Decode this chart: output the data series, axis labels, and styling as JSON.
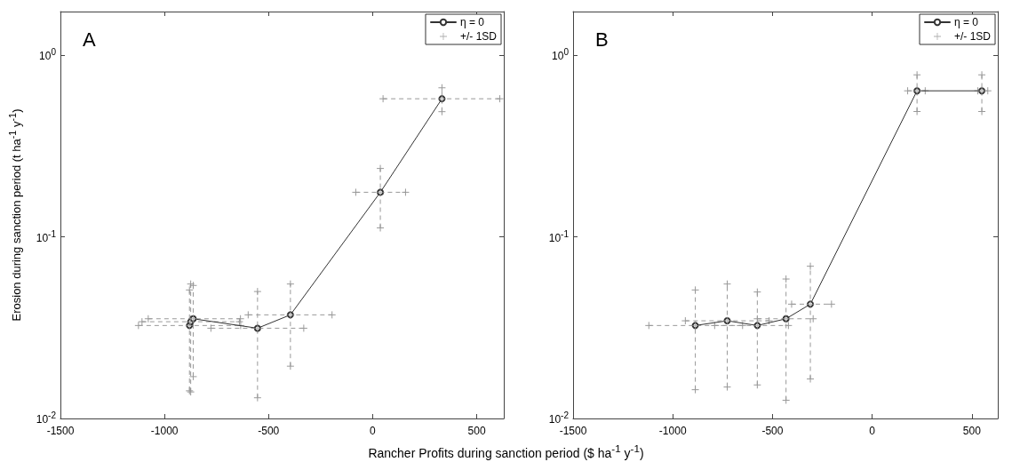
{
  "chart_data": [
    {
      "type": "line",
      "title": "A",
      "xlabel": "Rancher Profits during sanction period ($ ha$^{-1}$ y$^{-1}$)",
      "ylabel": "Erosion during sanction period (t ha$^{-1}$ y$^{-1}$)",
      "log": "y",
      "legend": "top right",
      "xlim": [
        -1500,
        630
      ],
      "xticks": [
        -1500,
        -1000,
        -500,
        0,
        500
      ],
      "ylim": [
        0.01,
        1.74
      ],
      "yticks": [
        {
          "value": 0.01,
          "label": "10$^{-2}$"
        },
        {
          "value": 0.1,
          "label": "10$^{-1}$"
        },
        {
          "value": 1,
          "label": "10$^{0}$"
        }
      ],
      "series": [
        {
          "name": "η = 0",
          "color": "#333333",
          "marker": "circle",
          "line_style": "solid",
          "x": [
            -880,
            -874,
            -862,
            -553,
            -395,
            37,
            333
          ],
          "values": [
            0.0325,
            0.0341,
            0.0354,
            0.0314,
            0.0372,
            0.176,
            0.576
          ]
        },
        {
          "name": "+/- 1SD",
          "type": "scatter",
          "color": "#999999",
          "marker": "cross",
          "line_style": "dashed",
          "x": [
            -880,
            -874,
            -862,
            -553,
            -395,
            37,
            333
          ],
          "values": [
            0.0325,
            0.0341,
            0.0354,
            0.0314,
            0.0372,
            0.176,
            0.576
          ],
          "errors": [
            [
              0.0142,
              0.051
            ],
            [
              0.014,
              0.055
            ],
            [
              0.017,
              0.054
            ],
            [
              0.013,
              0.05
            ],
            [
              0.0194,
              0.055
            ],
            [
              0.112,
              0.238
            ],
            [
              0.489,
              0.662
            ]
          ],
          "xerrors": [
            [
              -1125,
              -634
            ],
            [
              -1108,
              -640
            ],
            [
              -1078,
              -635
            ],
            [
              -777,
              -331
            ],
            [
              -598,
              -195
            ],
            [
              -81,
              158
            ],
            [
              50,
              611
            ]
          ]
        }
      ]
    },
    {
      "type": "line",
      "title": "B",
      "log": "y",
      "legend": "top right",
      "xlim": [
        -1500,
        630
      ],
      "xticks": [
        -1500,
        -1000,
        -500,
        0,
        500
      ],
      "ylim": [
        0.01,
        1.74
      ],
      "yticks": [
        {
          "value": 0.01,
          "label": "10$^{-2}$"
        },
        {
          "value": 0.1,
          "label": "10$^{-1}$"
        },
        {
          "value": 1,
          "label": "10$^{0}$"
        }
      ],
      "series": [
        {
          "name": "η = 0",
          "color": "#333333",
          "marker": "circle",
          "line_style": "solid",
          "x": [
            -887,
            -727,
            -576,
            -432,
            -310,
            225,
            550
          ],
          "values": [
            0.0325,
            0.0345,
            0.0325,
            0.0354,
            0.0426,
            0.637,
            0.637
          ]
        },
        {
          "name": "+/- 1SD",
          "type": "scatter",
          "color": "#999999",
          "marker": "cross",
          "line_style": "dashed",
          "x": [
            -887,
            -727,
            -576,
            -432,
            -310,
            225,
            550
          ],
          "values": [
            0.0325,
            0.0345,
            0.0325,
            0.0354,
            0.0426,
            0.637,
            0.637
          ],
          "errors": [
            [
              0.0144,
              0.051
            ],
            [
              0.0149,
              0.055
            ],
            [
              0.0153,
              0.0497
            ],
            [
              0.0126,
              0.0586
            ],
            [
              0.0165,
              0.0689
            ],
            [
              0.49,
              0.78
            ],
            [
              0.49,
              0.78
            ]
          ],
          "xerrors": [
            [
              -1120,
              -650
            ],
            [
              -937,
              -517
            ],
            [
              -790,
              -420
            ],
            [
              -576,
              -296
            ],
            [
              -404,
              -204
            ],
            [
              178,
              266
            ],
            [
              530,
              580
            ]
          ]
        }
      ]
    }
  ]
}
